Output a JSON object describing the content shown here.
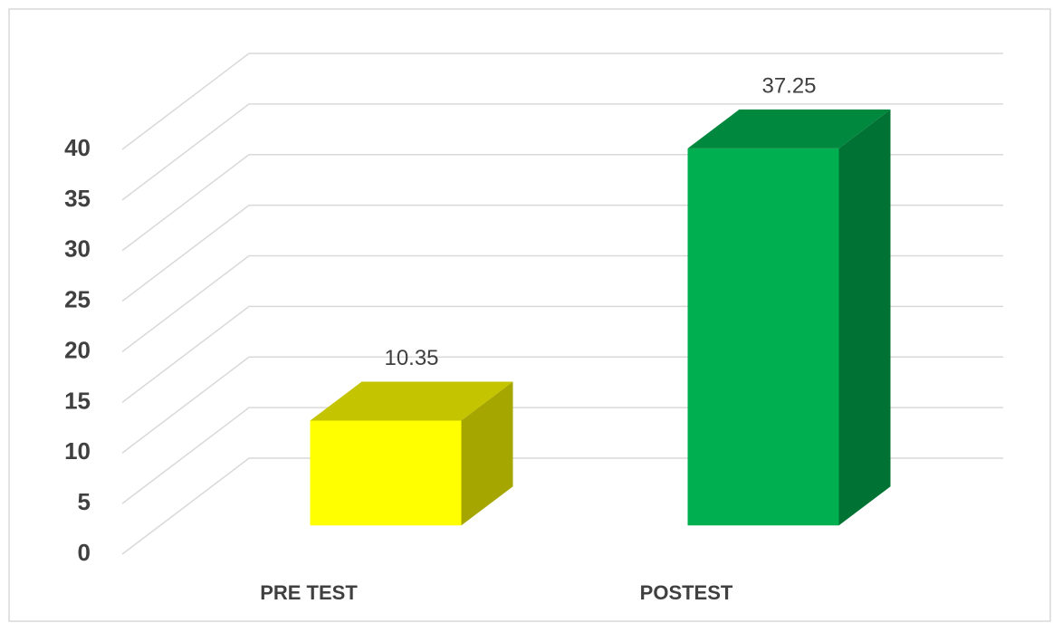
{
  "chart_data": {
    "type": "bar3d",
    "categories": [
      "PRE TEST",
      "POSTEST"
    ],
    "values": [
      10.35,
      37.25
    ],
    "colors": [
      "#ffff00",
      "#00b050"
    ],
    "ylim": [
      0,
      40
    ],
    "yticks": [
      0,
      5,
      10,
      15,
      20,
      25,
      30,
      35,
      40
    ],
    "grid": true
  }
}
